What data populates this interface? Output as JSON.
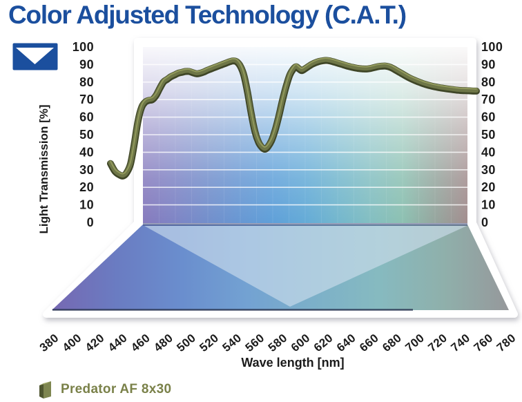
{
  "title": "Color Adjusted Technology (C.A.T.)",
  "brand_logo": {
    "icon": "triangle-down-flag",
    "background": "#1b4f9e",
    "glyph_color": "#ffffff"
  },
  "legend": {
    "swatch_icon": "olive-ribbon-swatch",
    "label": "Predator AF 8x30",
    "color": "#7a8149"
  },
  "chart_data": {
    "type": "line",
    "title": "Color Adjusted Technology (C.A.T.)",
    "xlabel": "Wave length [nm]",
    "ylabel": "Light Transmission [%]",
    "xlim": [
      380,
      780
    ],
    "ylim": [
      0,
      100
    ],
    "x_ticks": [
      380,
      400,
      420,
      440,
      460,
      480,
      500,
      520,
      540,
      560,
      580,
      600,
      620,
      640,
      660,
      680,
      700,
      720,
      740,
      760,
      780
    ],
    "y_ticks": [
      100,
      90,
      80,
      70,
      60,
      50,
      40,
      30,
      20,
      10,
      0
    ],
    "y_axis_sides": "both",
    "grid": "horizontal white lines every 10%",
    "background": "3D spectrum wall (violet to blue to teal to mauve) with perspective floor",
    "series": [
      {
        "name": "Predator AF 8x30",
        "color": "#6e7647",
        "points": [
          [
            380,
            34
          ],
          [
            385,
            29.5
          ],
          [
            390,
            27.5
          ],
          [
            394,
            27
          ],
          [
            398,
            29
          ],
          [
            402,
            34
          ],
          [
            406,
            45
          ],
          [
            410,
            58
          ],
          [
            414,
            66
          ],
          [
            418,
            69
          ],
          [
            422,
            70
          ],
          [
            426,
            70.5
          ],
          [
            430,
            73
          ],
          [
            434,
            77
          ],
          [
            438,
            80.5
          ],
          [
            442,
            82
          ],
          [
            446,
            83.5
          ],
          [
            450,
            84.5
          ],
          [
            454,
            85.5
          ],
          [
            458,
            86
          ],
          [
            462,
            86.5
          ],
          [
            466,
            86.5
          ],
          [
            470,
            85.8
          ],
          [
            474,
            85.2
          ],
          [
            478,
            85.5
          ],
          [
            482,
            86.2
          ],
          [
            486,
            87.2
          ],
          [
            490,
            88
          ],
          [
            494,
            88.8
          ],
          [
            498,
            89.6
          ],
          [
            502,
            90.4
          ],
          [
            506,
            91.2
          ],
          [
            510,
            92
          ],
          [
            514,
            92.5
          ],
          [
            518,
            92
          ],
          [
            522,
            89.5
          ],
          [
            526,
            84
          ],
          [
            530,
            74
          ],
          [
            534,
            62
          ],
          [
            538,
            52
          ],
          [
            542,
            46
          ],
          [
            546,
            43
          ],
          [
            549,
            42.2
          ],
          [
            552,
            43.5
          ],
          [
            556,
            47
          ],
          [
            560,
            53
          ],
          [
            564,
            61
          ],
          [
            568,
            70
          ],
          [
            572,
            78
          ],
          [
            576,
            84.5
          ],
          [
            580,
            88
          ],
          [
            583,
            89.2
          ],
          [
            586,
            88
          ],
          [
            589,
            87
          ],
          [
            592,
            87.8
          ],
          [
            596,
            89.2
          ],
          [
            600,
            90.5
          ],
          [
            604,
            91.5
          ],
          [
            608,
            92.2
          ],
          [
            612,
            92.6
          ],
          [
            616,
            92.8
          ],
          [
            620,
            92.5
          ],
          [
            625,
            91.8
          ],
          [
            630,
            91
          ],
          [
            635,
            90.2
          ],
          [
            640,
            89.4
          ],
          [
            645,
            88.8
          ],
          [
            650,
            88.3
          ],
          [
            655,
            88
          ],
          [
            660,
            87.9
          ],
          [
            664,
            88.2
          ],
          [
            668,
            88.7
          ],
          [
            672,
            89.2
          ],
          [
            676,
            89.5
          ],
          [
            680,
            89.6
          ],
          [
            684,
            89.2
          ],
          [
            688,
            88.4
          ],
          [
            692,
            87.2
          ],
          [
            696,
            86
          ],
          [
            700,
            84.8
          ],
          [
            705,
            83.3
          ],
          [
            710,
            82
          ],
          [
            715,
            80.9
          ],
          [
            720,
            79.9
          ],
          [
            725,
            79
          ],
          [
            730,
            78.3
          ],
          [
            735,
            77.7
          ],
          [
            740,
            77.2
          ],
          [
            745,
            76.8
          ],
          [
            750,
            76.4
          ],
          [
            755,
            76.1
          ],
          [
            760,
            75.8
          ],
          [
            765,
            75.6
          ],
          [
            770,
            75.5
          ],
          [
            775,
            75.4
          ],
          [
            780,
            75.3
          ]
        ]
      }
    ]
  },
  "colors": {
    "title": "#1b4f9e",
    "tick_label": "#1b1b1b",
    "curve_outline": "#3f4627",
    "curve_main": "#6e7647",
    "curve_highlight": "#9aa262",
    "frame": "#ffffff",
    "wall_gradient": [
      "#8478bc",
      "#7b82c4",
      "#6f8cca",
      "#6495d2",
      "#5c9ed8",
      "#61a9d6",
      "#70b5cc",
      "#80bdc0",
      "#8abfb0",
      "#93a49c",
      "#a18b8c"
    ],
    "floor_gradient": [
      "#7668b2",
      "#6a7cc2",
      "#6a8ece",
      "#73a2d2",
      "#7cb0c9",
      "#86bac0",
      "#8fb0ab",
      "#96989b"
    ],
    "floor_triangle": "#cfdfed",
    "junction_shadow": "#434f7d",
    "front_edge_line": "#2e3a55"
  }
}
